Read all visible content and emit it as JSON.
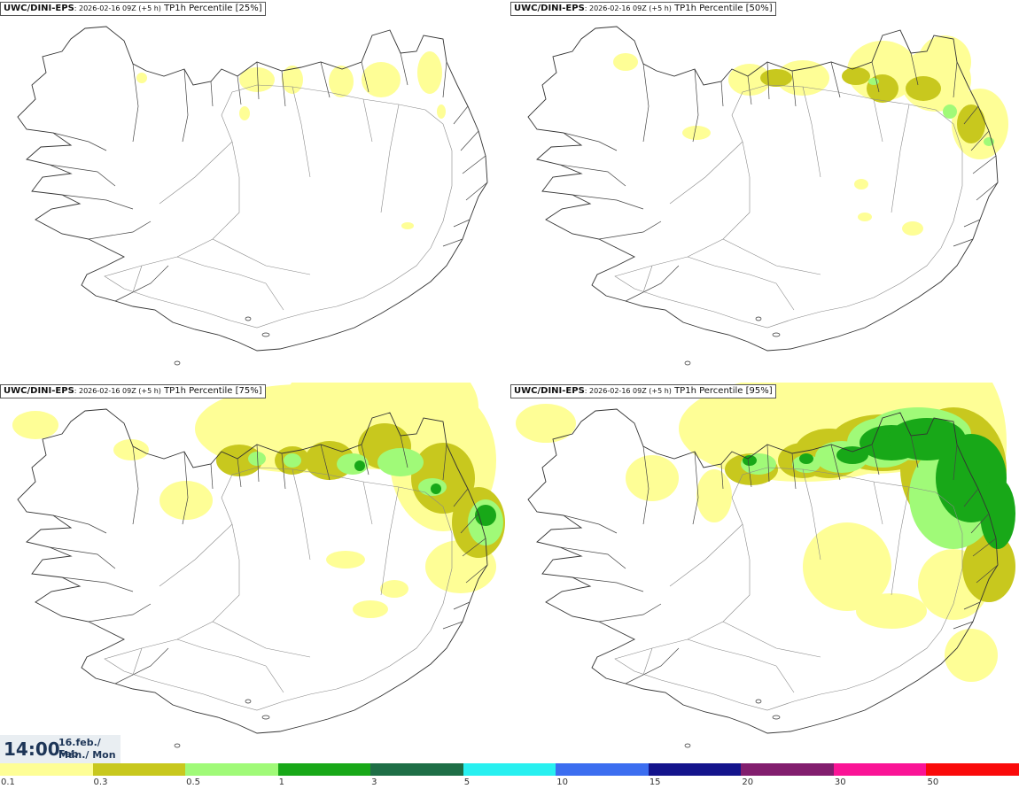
{
  "panels": [
    {
      "model": "UWC/DINI-EPS",
      "run": ": 2026-02-16 09Z (+5 h)",
      "field": " TP1h Percentile [25%]"
    },
    {
      "model": "UWC/DINI-EPS",
      "run": ": 2026-02-16 09Z (+5 h)",
      "field": " TP1h Percentile [50%]"
    },
    {
      "model": "UWC/DINI-EPS",
      "run": ": 2026-02-16 09Z (+5 h)",
      "field": " TP1h Percentile [75%]"
    },
    {
      "model": "UWC/DINI-EPS",
      "run": ": 2026-02-16 09Z (+5 h)",
      "field": " TP1h Percentile [95%]"
    }
  ],
  "valid_time": {
    "time": "14:00",
    "date": "16.feb./ Feb",
    "weekday": "Mán./ Mon"
  },
  "legend": {
    "colors": [
      "#fefe96",
      "#c8c81e",
      "#a0fa78",
      "#18a818",
      "#1e6e46",
      "#28f0f0",
      "#3c6ef0",
      "#14148c",
      "#821e6e",
      "#fa1496",
      "#fa0a0a"
    ],
    "labels": [
      "0.1",
      "0.3",
      "0.5",
      "1",
      "3",
      "5",
      "10",
      "15",
      "20",
      "30",
      "50"
    ]
  },
  "precip_colors": {
    "light": "#fefe96",
    "moderate": "#c8c81e",
    "medium": "#a0fa78",
    "heavy": "#18a818"
  }
}
